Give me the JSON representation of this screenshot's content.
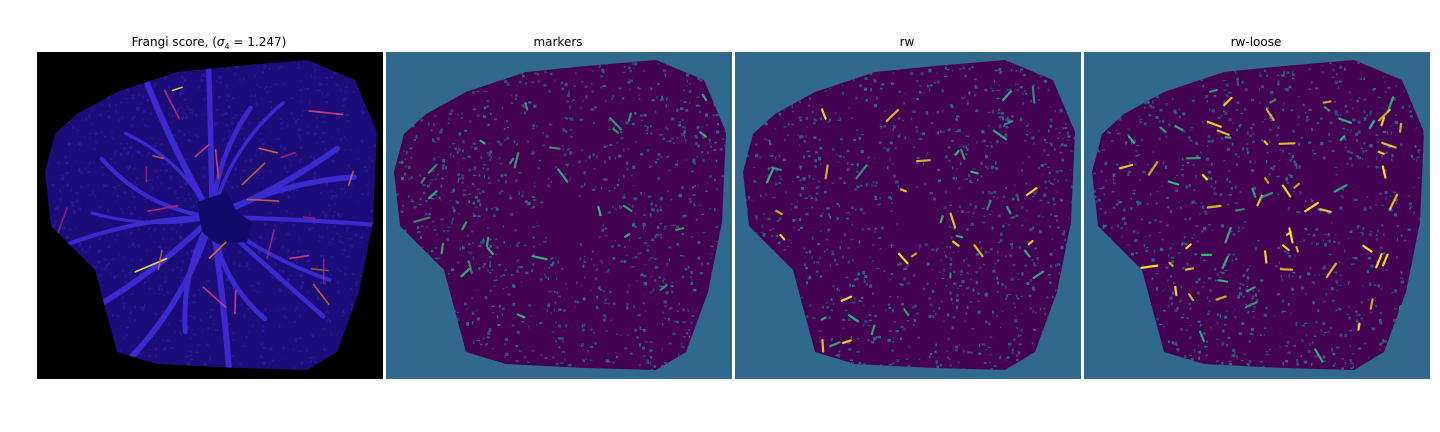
{
  "figure": {
    "panels": [
      {
        "title_prefix": "Frangi score, (",
        "title_sigma": "σ",
        "title_subscript": "4",
        "title_suffix": " = 1.247)",
        "colormap": "plasma-like",
        "background": "#000000",
        "tissue": "#1c0c7a",
        "highlight_colors": [
          "#b5237a",
          "#e36a2e",
          "#f4e04a",
          "#d23a7c"
        ]
      },
      {
        "title": "markers",
        "colormap": "viridis-like",
        "background": "#31688e",
        "tissue": "#440154",
        "highlight_colors": [
          "#35b779"
        ]
      },
      {
        "title": "rw",
        "colormap": "viridis-like",
        "background": "#31688e",
        "tissue": "#440154",
        "highlight_colors": [
          "#35b779",
          "#fde725"
        ]
      },
      {
        "title": "rw-loose",
        "colormap": "viridis-like",
        "background": "#31688e",
        "tissue": "#440154",
        "highlight_colors": [
          "#fde725",
          "#35b779"
        ]
      }
    ]
  }
}
